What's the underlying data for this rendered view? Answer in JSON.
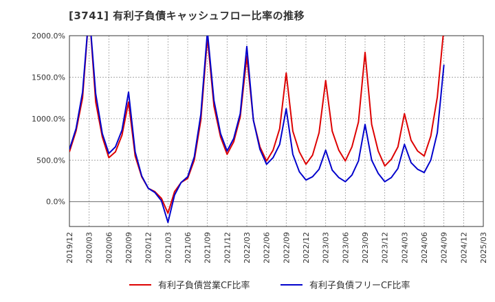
{
  "chart_data": {
    "type": "line",
    "title": "[3741]  有利子負債キャッシュフロー比率の推移",
    "ylim": [
      -300,
      2000
    ],
    "yticks": [
      0,
      500,
      1000,
      1500,
      2000
    ],
    "ytick_labels": [
      "0.0%",
      "500.0%",
      "1000.0%",
      "1500.0%",
      "2000.0%"
    ],
    "xtick_labels": [
      "2019/12",
      "2020/03",
      "2020/06",
      "2020/09",
      "2020/12",
      "2021/03",
      "2021/06",
      "2021/09",
      "2021/12",
      "2022/03",
      "2022/06",
      "2022/09",
      "2022/12",
      "2023/03",
      "2023/06",
      "2023/09",
      "2023/12",
      "2024/03",
      "2024/06",
      "2024/09",
      "2024/12",
      "2025/03"
    ],
    "x_start": "2019/12",
    "x_end": "2025/03",
    "legend_position": "bottom",
    "grid": true,
    "series": [
      {
        "name": "有利子負債営業CF比率",
        "color": "#dd0000",
        "points": [
          [
            "2019/12",
            600
          ],
          [
            "2020/01",
            850
          ],
          [
            "2020/02",
            1250
          ],
          [
            "2020/03",
            2300
          ],
          [
            "2020/04",
            1200
          ],
          [
            "2020/05",
            780
          ],
          [
            "2020/06",
            530
          ],
          [
            "2020/07",
            600
          ],
          [
            "2020/08",
            800
          ],
          [
            "2020/09",
            1200
          ],
          [
            "2020/10",
            550
          ],
          [
            "2020/11",
            300
          ],
          [
            "2020/12",
            160
          ],
          [
            "2021/01",
            120
          ],
          [
            "2021/02",
            40
          ],
          [
            "2021/03",
            -140
          ],
          [
            "2021/04",
            120
          ],
          [
            "2021/05",
            230
          ],
          [
            "2021/06",
            280
          ],
          [
            "2021/07",
            500
          ],
          [
            "2021/08",
            980
          ],
          [
            "2021/09",
            1980
          ],
          [
            "2021/10",
            1150
          ],
          [
            "2021/11",
            780
          ],
          [
            "2021/12",
            570
          ],
          [
            "2022/01",
            720
          ],
          [
            "2022/02",
            1020
          ],
          [
            "2022/03",
            1750
          ],
          [
            "2022/04",
            980
          ],
          [
            "2022/05",
            660
          ],
          [
            "2022/06",
            490
          ],
          [
            "2022/07",
            620
          ],
          [
            "2022/08",
            880
          ],
          [
            "2022/09",
            1550
          ],
          [
            "2022/10",
            850
          ],
          [
            "2022/11",
            600
          ],
          [
            "2022/12",
            450
          ],
          [
            "2023/01",
            560
          ],
          [
            "2023/02",
            830
          ],
          [
            "2023/03",
            1460
          ],
          [
            "2023/04",
            850
          ],
          [
            "2023/05",
            620
          ],
          [
            "2023/06",
            490
          ],
          [
            "2023/07",
            660
          ],
          [
            "2023/08",
            960
          ],
          [
            "2023/09",
            1800
          ],
          [
            "2023/10",
            930
          ],
          [
            "2023/11",
            610
          ],
          [
            "2023/12",
            430
          ],
          [
            "2024/01",
            510
          ],
          [
            "2024/02",
            660
          ],
          [
            "2024/03",
            1060
          ],
          [
            "2024/04",
            740
          ],
          [
            "2024/05",
            610
          ],
          [
            "2024/06",
            550
          ],
          [
            "2024/07",
            790
          ],
          [
            "2024/08",
            1260
          ],
          [
            "2024/09",
            2100
          ]
        ]
      },
      {
        "name": "有利子負債フリーCF比率",
        "color": "#0000cc",
        "points": [
          [
            "2019/12",
            630
          ],
          [
            "2020/01",
            880
          ],
          [
            "2020/02",
            1320
          ],
          [
            "2020/03",
            2300
          ],
          [
            "2020/04",
            1300
          ],
          [
            "2020/05",
            820
          ],
          [
            "2020/06",
            580
          ],
          [
            "2020/07",
            660
          ],
          [
            "2020/08",
            860
          ],
          [
            "2020/09",
            1320
          ],
          [
            "2020/10",
            600
          ],
          [
            "2020/11",
            310
          ],
          [
            "2020/12",
            160
          ],
          [
            "2021/01",
            110
          ],
          [
            "2021/02",
            10
          ],
          [
            "2021/03",
            -250
          ],
          [
            "2021/04",
            80
          ],
          [
            "2021/05",
            230
          ],
          [
            "2021/06",
            300
          ],
          [
            "2021/07",
            540
          ],
          [
            "2021/08",
            1050
          ],
          [
            "2021/09",
            2050
          ],
          [
            "2021/10",
            1220
          ],
          [
            "2021/11",
            820
          ],
          [
            "2021/12",
            610
          ],
          [
            "2022/01",
            760
          ],
          [
            "2022/02",
            1060
          ],
          [
            "2022/03",
            1870
          ],
          [
            "2022/04",
            980
          ],
          [
            "2022/05",
            630
          ],
          [
            "2022/06",
            450
          ],
          [
            "2022/07",
            530
          ],
          [
            "2022/08",
            690
          ],
          [
            "2022/09",
            1120
          ],
          [
            "2022/10",
            570
          ],
          [
            "2022/11",
            360
          ],
          [
            "2022/12",
            260
          ],
          [
            "2023/01",
            300
          ],
          [
            "2023/02",
            390
          ],
          [
            "2023/03",
            620
          ],
          [
            "2023/04",
            380
          ],
          [
            "2023/05",
            290
          ],
          [
            "2023/06",
            240
          ],
          [
            "2023/07",
            320
          ],
          [
            "2023/08",
            490
          ],
          [
            "2023/09",
            930
          ],
          [
            "2023/10",
            500
          ],
          [
            "2023/11",
            340
          ],
          [
            "2023/12",
            240
          ],
          [
            "2024/01",
            290
          ],
          [
            "2024/02",
            400
          ],
          [
            "2024/03",
            690
          ],
          [
            "2024/04",
            470
          ],
          [
            "2024/05",
            390
          ],
          [
            "2024/06",
            350
          ],
          [
            "2024/07",
            500
          ],
          [
            "2024/08",
            830
          ],
          [
            "2024/09",
            1650
          ]
        ]
      }
    ]
  }
}
